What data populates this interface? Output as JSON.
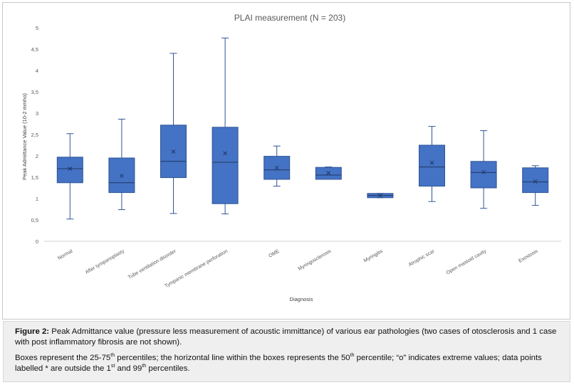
{
  "chart_data": {
    "type": "boxplot",
    "title": "PLAI measurement (N = 203)",
    "xlabel": "Diagnosis",
    "ylabel": "Peak Admittance Value (10-2 mmho)",
    "ylim": [
      0,
      5
    ],
    "yticks": [
      "0",
      "0,5",
      "1",
      "1,5",
      "2",
      "2,5",
      "3",
      "3,5",
      "4",
      "4,5",
      "5"
    ],
    "grid": false,
    "color": "#4472c4",
    "edge_color": "#2f5597",
    "categories": [
      "Normal",
      "After tympanoplasty",
      "Tube ventilation disorder",
      "Tympanic membrane perforation",
      "OME",
      "Myringosclerosis",
      "Myringitis",
      "Atrophic scar",
      "Open mastoid cavity",
      "Exostosis"
    ],
    "boxes": [
      {
        "min": 0.52,
        "q1": 1.37,
        "median": 1.7,
        "q3": 1.97,
        "max": 2.52,
        "mean": 1.7
      },
      {
        "min": 0.74,
        "q1": 1.14,
        "median": 1.37,
        "q3": 1.95,
        "max": 2.86,
        "mean": 1.53
      },
      {
        "min": 0.65,
        "q1": 1.49,
        "median": 1.87,
        "q3": 2.72,
        "max": 4.4,
        "mean": 2.1
      },
      {
        "min": 0.64,
        "q1": 0.88,
        "median": 1.85,
        "q3": 2.67,
        "max": 4.76,
        "mean": 2.06
      },
      {
        "min": 1.29,
        "q1": 1.45,
        "median": 1.67,
        "q3": 1.99,
        "max": 2.23,
        "mean": 1.72
      },
      {
        "min": 1.45,
        "q1": 1.45,
        "median": 1.55,
        "q3": 1.73,
        "max": 1.74,
        "mean": 1.6
      },
      {
        "min": 1.02,
        "q1": 1.02,
        "median": 1.07,
        "q3": 1.12,
        "max": 1.12,
        "mean": 1.07
      },
      {
        "min": 0.93,
        "q1": 1.29,
        "median": 1.74,
        "q3": 2.25,
        "max": 2.69,
        "mean": 1.84
      },
      {
        "min": 0.77,
        "q1": 1.25,
        "median": 1.61,
        "q3": 1.87,
        "max": 2.59,
        "mean": 1.62
      },
      {
        "min": 0.84,
        "q1": 1.14,
        "median": 1.39,
        "q3": 1.72,
        "max": 1.77,
        "mean": 1.4
      }
    ]
  },
  "caption": {
    "figure_label": "Figure 2:",
    "figure_text": "Peak Admittance value (pressure less measurement of acoustic immittance) of various ear pathologies (two cases of otosclerosis and 1 case with post inflammatory fibrosis are not shown).",
    "note_part1": "Boxes represent the 25-75",
    "note_sup1": "th",
    "note_part2": " percentiles; the horizontal line within the boxes represents the 50",
    "note_sup2": "th",
    "note_part3": " percentile; “o” indicates extreme values; data points labelled * are outside the 1",
    "note_sup3": "st",
    "note_part4": " and 99",
    "note_sup4": "th",
    "note_part5": " percentiles."
  }
}
